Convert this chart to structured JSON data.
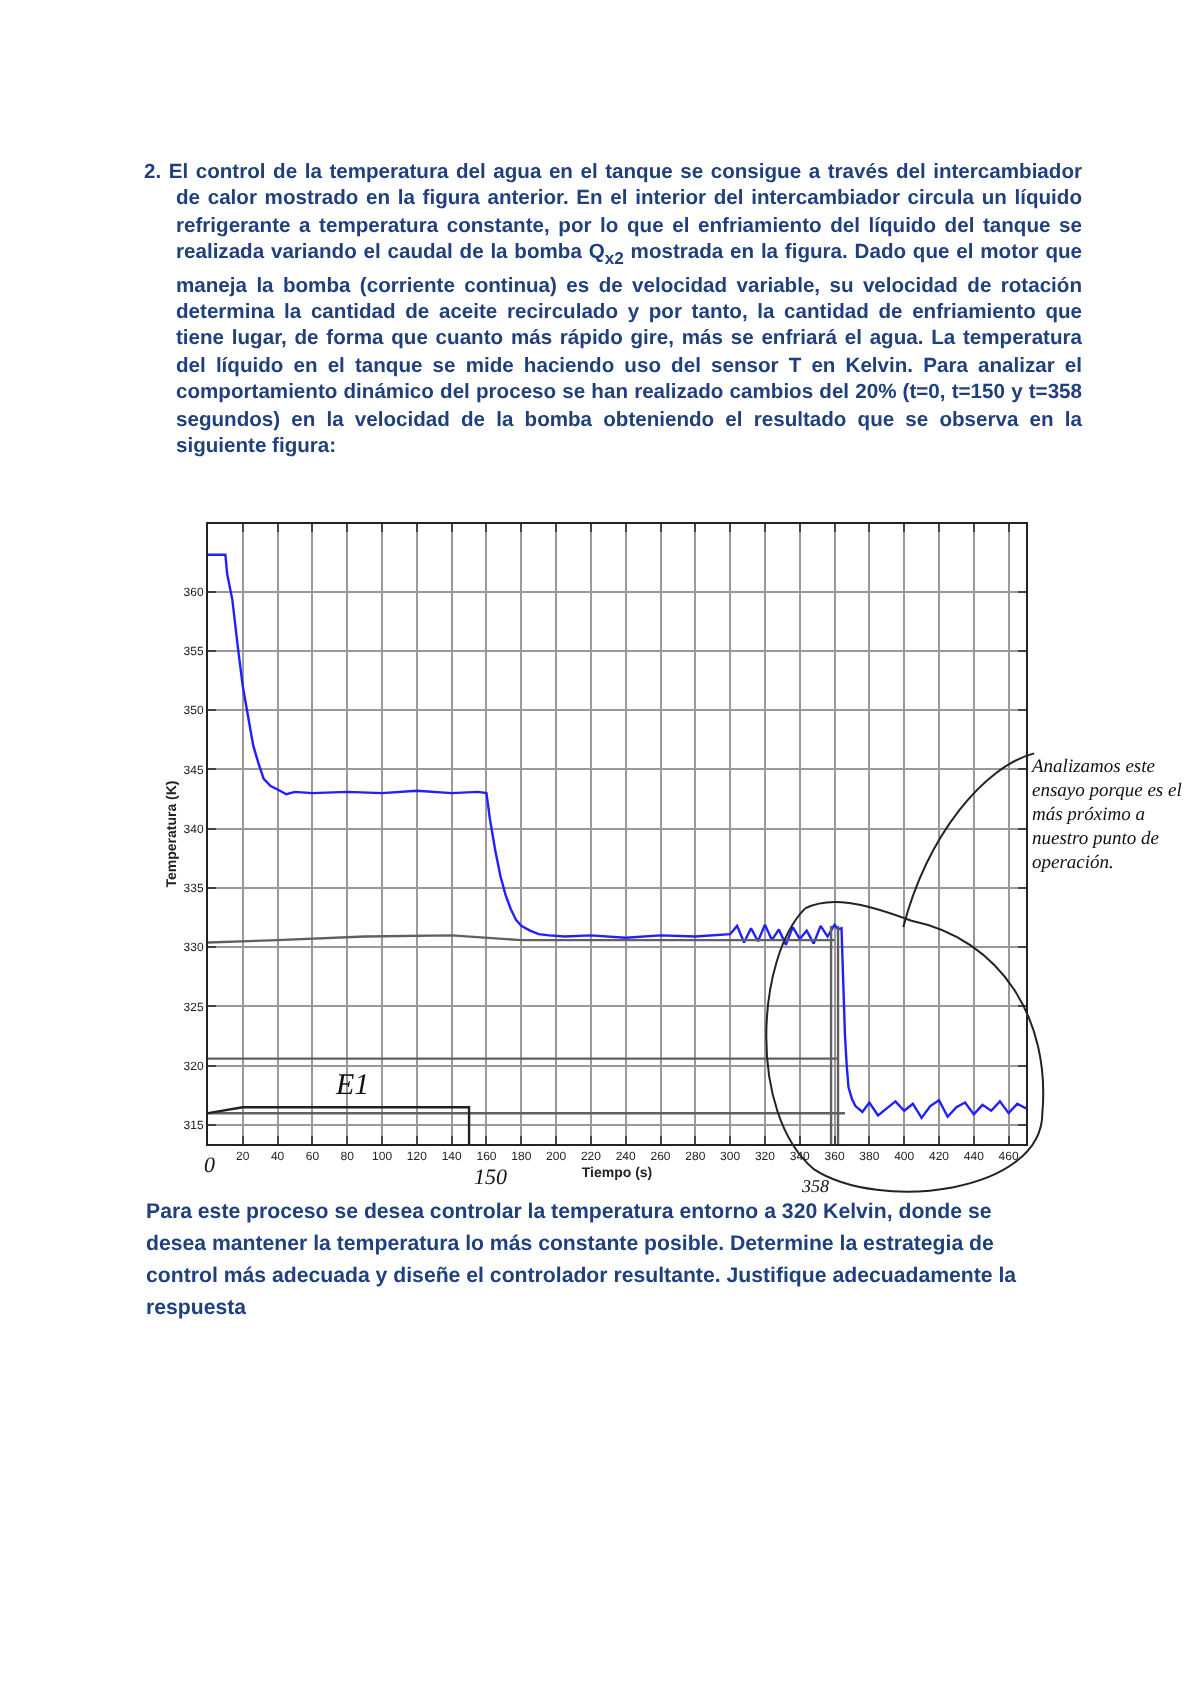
{
  "chart_data": {
    "type": "line",
    "title": "2. El control de la temperatura del agua en el tanque se consigue a través del intercambiador de calor mostrado en la figura anterior. En el interior del intercambiador circula un líquido refrigerante a temperatura constante, por lo que el enfriamiento del líquido del tanque se realizada variando el caudal de la bomba Q$_{x2}$ mostrada en la figura. Dado que el motor que maneja la bomba (corriente continua) es de velocidad variable, su velocidad de rotación determina la cantidad de aceite recirculado y por tanto, la cantidad de enfriamiento que tiene lugar, de forma que cuanto más rápido gire, más se enfriará el agua. La temperatura del líquido en el tanque se mide haciendo uso del sensor T en Kelvin. Para analizar el comportamiento dinámico del proceso se han realizado cambios del 20% (t=0, t=150 y t=358 segundos) en la velocidad de la bomba obteniendo el resultado que se observa en la siguiente figura:",
    "xlabel": "Tiempo (s)",
    "ylabel": "Temperatura (K)",
    "xlim": [
      0,
      470
    ],
    "ylim": [
      313.4,
      365.7
    ],
    "xticks": [
      20,
      40,
      60,
      80,
      100,
      120,
      140,
      160,
      180,
      200,
      220,
      240,
      260,
      280,
      300,
      320,
      340,
      360,
      380,
      400,
      420,
      440,
      460
    ],
    "yticks": [
      315,
      320,
      325,
      330,
      335,
      340,
      345,
      350,
      355,
      360
    ],
    "grid": true,
    "marker": "none",
    "line_style": "solid",
    "series": [
      {
        "color": "#2020ff",
        "x": [
          0,
          10,
          11,
          14,
          17,
          20,
          23,
          26,
          29,
          32,
          36,
          40,
          45,
          50,
          60,
          80,
          100,
          120,
          140,
          155,
          160,
          162,
          165,
          168,
          171,
          174,
          177,
          180,
          185,
          190,
          196,
          205,
          220,
          240,
          260,
          280,
          300,
          304,
          308,
          312,
          316,
          320,
          324,
          328,
          332,
          336,
          340,
          344,
          348,
          352,
          356,
          360,
          362,
          364,
          365,
          366,
          367,
          368,
          370,
          372,
          376,
          380,
          385,
          390,
          395,
          400,
          405,
          410,
          415,
          420,
          425,
          430,
          435,
          440,
          445,
          450,
          455,
          460,
          465,
          470
        ],
        "values": [
          363.1,
          363.1,
          361.5,
          359.3,
          355.5,
          352,
          349.5,
          347,
          345.5,
          344.2,
          343.6,
          343.3,
          342.9,
          343.1,
          343.0,
          343.1,
          343.0,
          343.2,
          343.0,
          343.1,
          343.0,
          340.8,
          338.2,
          336,
          334.4,
          333.2,
          332.3,
          331.8,
          331.4,
          331.1,
          331.0,
          330.9,
          331.0,
          330.8,
          331.0,
          330.9,
          331.1,
          331.8,
          330.4,
          331.6,
          330.5,
          331.9,
          330.6,
          331.5,
          330.2,
          331.7,
          330.7,
          331.4,
          330.3,
          331.8,
          330.9,
          331.9,
          331.5,
          331.6,
          327,
          322.5,
          320,
          318.2,
          317.2,
          316.6,
          316.1,
          316.9,
          315.8,
          316.4,
          317.0,
          316.2,
          316.8,
          315.6,
          316.6,
          317.1,
          315.7,
          316.5,
          316.9,
          315.9,
          316.7,
          316.2,
          317.0,
          316.0,
          316.8,
          316.4
        ]
      },
      {
        "color": "#606060",
        "x": [
          0,
          40,
          90,
          140,
          180,
          360
        ],
        "values": [
          330.4,
          330.6,
          330.9,
          331.0,
          330.6,
          330.6
        ]
      },
      {
        "color": "#606060",
        "x": [
          0,
          362
        ],
        "values": [
          320.6,
          320.6
        ]
      },
      {
        "color": "#606060",
        "x": [
          0,
          366
        ],
        "values": [
          316.0,
          316.0
        ]
      },
      {
        "color": "#202020",
        "x": [
          0,
          20,
          150,
          150
        ],
        "values": [
          316.0,
          316.5,
          316.5,
          313.4
        ]
      },
      {
        "color": "#606060",
        "x": [
          358,
          358
        ],
        "values": [
          313.4,
          331.8
        ]
      },
      {
        "color": "#606060",
        "x": [
          362,
          362
        ],
        "values": [
          313.4,
          331.8
        ]
      }
    ],
    "annotations": [
      "E1",
      "0",
      "150",
      "358",
      "Analizamos este ensayo porque es el más próximo a nuestro punto de operación.",
      "Para este proceso se desea controlar la temperatura entorno a 320 Kelvin, donde se desea mantener la temperatura lo más constante posible. Determine la estrategia de control más adecuada y diseñe el controlador resultante. Justifique adecuadamente la respuesta"
    ]
  }
}
